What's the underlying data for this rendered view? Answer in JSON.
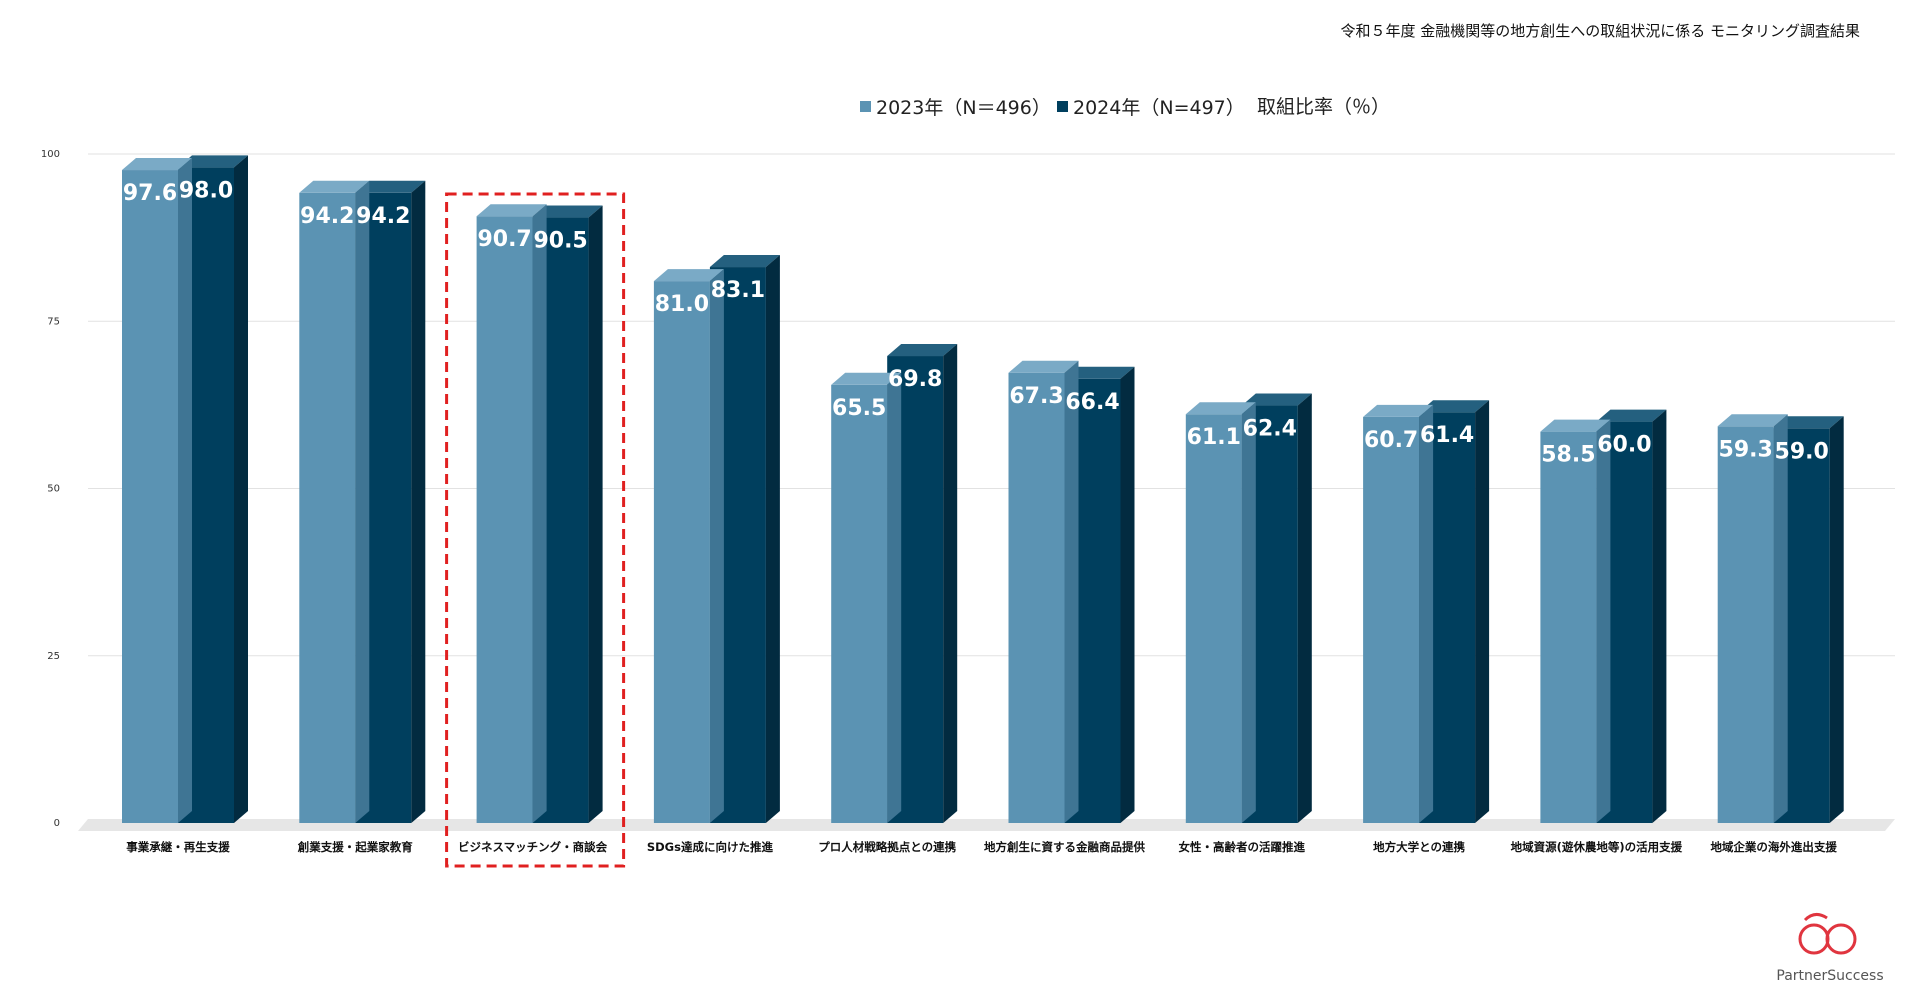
{
  "header": {
    "subtitle": "令和５年度 金融機関等の地方創生への取組状況に係る モニタリング調査結果"
  },
  "legend": {
    "items": [
      "2023年（N＝496）",
      "2024年（N=497）"
    ],
    "unit_label": "取組比率（％）"
  },
  "colors": {
    "series_2023": "#5b93b3",
    "series_2023_top": "#7aaac6",
    "series_2023_side": "#3f7594",
    "series_2024": "#003f5e",
    "series_2024_top": "#24607f",
    "series_2024_side": "#022b40",
    "highlight": "#e02020",
    "grid": "#e2e2e2",
    "floor": "#e6e6e6",
    "logo": "#e0353f"
  },
  "chart_data": {
    "type": "bar",
    "categories": [
      "事業承継・再生支援",
      "創業支援・起業家教育",
      "ビジネスマッチング・商談会",
      "SDGs達成に向けた推進",
      "プロ人材戦略拠点との連携",
      "地方創生に資する金融商品提供",
      "女性・高齢者の活躍推進",
      "地方大学との連携",
      "地域資源(遊休農地等)の活用支援",
      "地域企業の海外進出支援"
    ],
    "series": [
      {
        "name": "2023年（N＝496）",
        "values": [
          97.6,
          94.2,
          90.7,
          81.0,
          65.5,
          67.3,
          61.1,
          60.7,
          58.5,
          59.3
        ]
      },
      {
        "name": "2024年（N=497）",
        "values": [
          98.0,
          94.2,
          90.5,
          83.1,
          69.8,
          66.4,
          62.4,
          61.4,
          60.0,
          59.0
        ]
      }
    ],
    "value_labels": [
      [
        "97.6",
        "94.2",
        "90.7",
        "81.0",
        "65.5",
        "67.3",
        "61.1",
        "60.7",
        "58.5",
        "59.3"
      ],
      [
        "98.0",
        "94.2",
        "90.5",
        "83.1",
        "69.8",
        "66.4",
        "62.4",
        "61.4",
        "60.0",
        "59.0"
      ]
    ],
    "yticks": [
      "0",
      "25",
      "50",
      "75",
      "100"
    ],
    "ylim": [
      0,
      100
    ],
    "highlighted_category": "ビジネスマッチング・商談会",
    "grid": true,
    "legend_position": "top-center"
  },
  "logo": {
    "text": "PartnerSuccess"
  }
}
